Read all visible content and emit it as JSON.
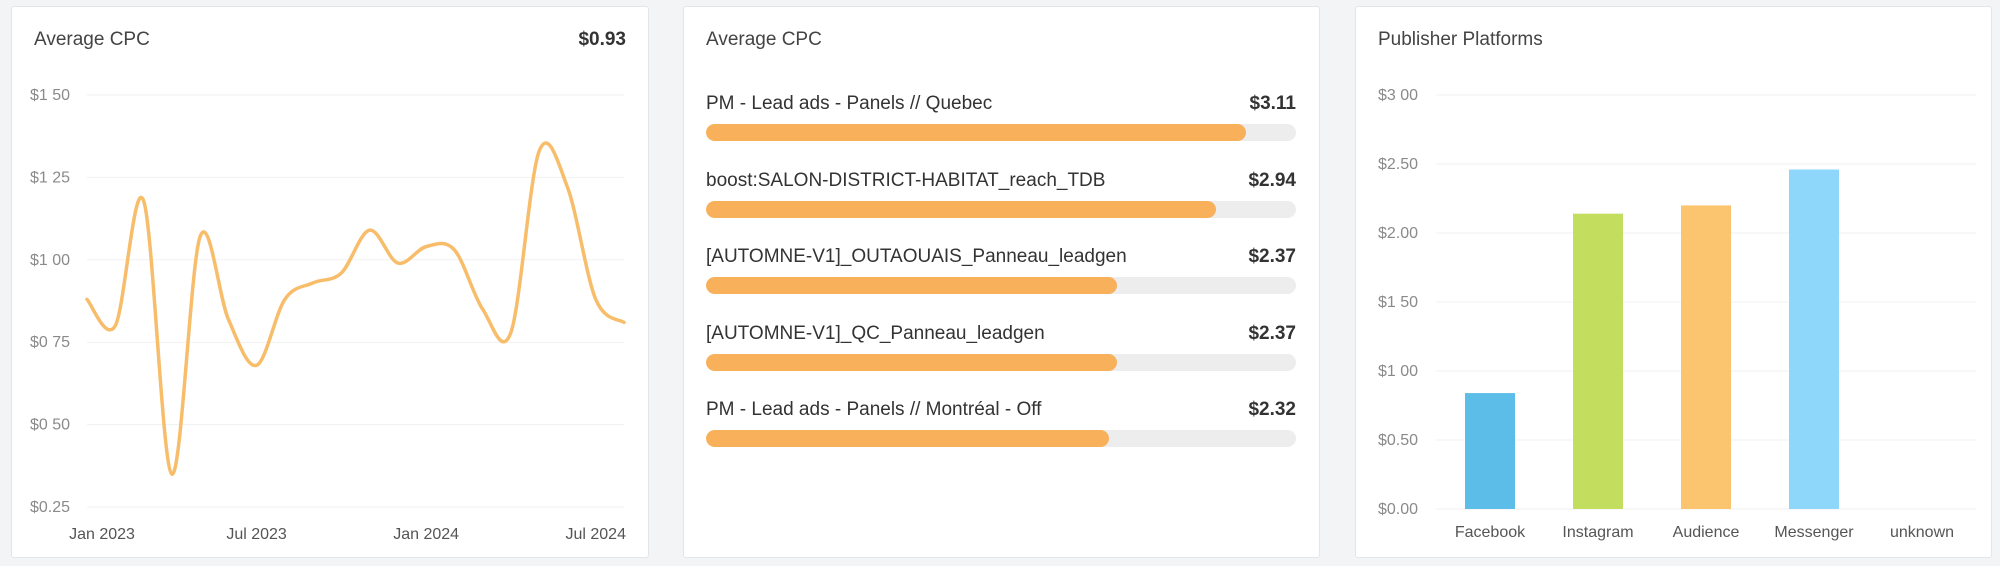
{
  "cards": [
    {
      "title": "Average CPC",
      "value": "$0.93"
    },
    {
      "title": "Average CPC"
    },
    {
      "title": "Publisher Platforms"
    }
  ],
  "chart_data": [
    {
      "type": "line",
      "title": "Average CPC",
      "summary_value": "$0.93",
      "x": [
        "2023-01",
        "2023-02",
        "2023-03",
        "2023-04",
        "2023-05",
        "2023-06",
        "2023-07",
        "2023-08",
        "2023-09",
        "2023-10",
        "2023-11",
        "2023-12",
        "2024-01",
        "2024-02",
        "2024-03",
        "2024-04",
        "2024-05",
        "2024-06",
        "2024-07",
        "2024-08"
      ],
      "values": [
        0.88,
        0.8,
        1.18,
        0.35,
        1.07,
        0.82,
        0.68,
        0.88,
        0.93,
        0.96,
        1.09,
        0.99,
        1.04,
        1.03,
        0.85,
        0.78,
        1.33,
        1.22,
        0.88,
        0.81
      ],
      "xticks": [
        "Jan 2023",
        "Jul 2023",
        "Jan 2024",
        "Jul 2024"
      ],
      "yticks": [
        "$0.25",
        "$0 50",
        "$0 75",
        "$1 00",
        "$1 25",
        "$1 50"
      ],
      "ylim": [
        0.25,
        1.5
      ],
      "grid": true,
      "color": "#f7bd6a"
    },
    {
      "type": "bar",
      "orientation": "horizontal",
      "title": "Average CPC",
      "categories": [
        "PM - Lead ads - Panels // Quebec",
        "boost:SALON-DISTRICT-HABITAT_reach_TDB",
        "[AUTOMNE-V1]_OUTAOUAIS_Panneau_leadgen",
        "[AUTOMNE-V1]_QC_Panneau_leadgen",
        "PM - Lead ads - Panels // Montréal - Off"
      ],
      "values": [
        3.11,
        2.94,
        2.37,
        2.37,
        2.32
      ],
      "value_labels": [
        "$3.11",
        "$2.94",
        "$2.37",
        "$2.37",
        "$2.32"
      ],
      "xlim": [
        0,
        3.4
      ],
      "color": "#f8b15a",
      "track_color": "#ededed"
    },
    {
      "type": "bar",
      "title": "Publisher Platforms",
      "categories": [
        "Facebook",
        "Instagram",
        "Audience",
        "Messenger",
        "unknown"
      ],
      "values": [
        0.84,
        2.14,
        2.2,
        2.46,
        0
      ],
      "yticks": [
        "$0.00",
        "$0.50",
        "$1 00",
        "$1 50",
        "$2.00",
        "$2.50",
        "$3 00"
      ],
      "ylim": [
        0,
        3
      ],
      "colors": [
        "#5bbde8",
        "#c3dd5f",
        "#fbc46e",
        "#8fd6fb",
        "#cccccc"
      ],
      "grid": true
    }
  ]
}
